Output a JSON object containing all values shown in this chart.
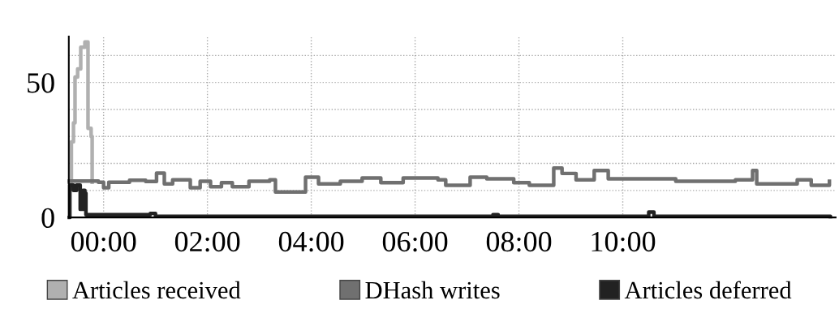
{
  "chart_data": {
    "type": "step",
    "xlim": [
      -0.67,
      14.1
    ],
    "ylim": [
      0,
      67
    ],
    "xticks": [
      {
        "value": 0,
        "label": "00:00"
      },
      {
        "value": 2,
        "label": "02:00"
      },
      {
        "value": 4,
        "label": "04:00"
      },
      {
        "value": 6,
        "label": "06:00"
      },
      {
        "value": 8,
        "label": "08:00"
      },
      {
        "value": 10,
        "label": "10:00"
      }
    ],
    "yticks": [
      0,
      {
        "value": 10,
        "label": null
      },
      {
        "value": 20,
        "label": null
      },
      {
        "value": 30,
        "label": null
      },
      {
        "value": 40,
        "label": null
      },
      50,
      {
        "value": 60,
        "label": null
      }
    ],
    "grid": true,
    "legend": "bottom",
    "marker": "none",
    "line_style": "solid",
    "series": [
      {
        "name": "Articles received",
        "color": "#b0b0b0",
        "x": [
          -0.66,
          -0.62,
          -0.58,
          -0.55,
          -0.5,
          -0.44,
          -0.36,
          -0.3,
          -0.24,
          -0.22
        ],
        "values": [
          13,
          28,
          35,
          52,
          55,
          63,
          65,
          33,
          30,
          13
        ]
      },
      {
        "name": "DHash writes",
        "color": "#707070",
        "x": [
          -0.66,
          -0.1,
          0.0,
          0.1,
          0.5,
          0.81,
          1.02,
          1.17,
          1.33,
          1.67,
          1.86,
          2.06,
          2.27,
          2.48,
          2.8,
          3.2,
          3.31,
          3.67,
          3.89,
          4.14,
          4.56,
          4.98,
          5.34,
          5.77,
          6.44,
          6.59,
          7.06,
          7.38,
          7.9,
          8.2,
          8.67,
          8.83,
          9.1,
          9.45,
          9.72,
          11.02,
          12.17,
          12.5,
          12.58,
          13.36,
          13.63,
          13.98
        ],
        "values": [
          13.5,
          13,
          11,
          13,
          13.8,
          13.3,
          16.4,
          12.4,
          13.9,
          11,
          13.4,
          11.4,
          12.9,
          11.4,
          13.4,
          13.9,
          9.4,
          9.4,
          14.9,
          12.4,
          13.4,
          14.6,
          12.9,
          14.6,
          13.9,
          11.9,
          14.9,
          14.3,
          12.9,
          11.9,
          18.3,
          16.3,
          13.9,
          17.4,
          14.3,
          13.4,
          13.9,
          17.4,
          12.4,
          13.9,
          11.9,
          13.4
        ]
      },
      {
        "name": "Articles deferred",
        "color": "#222222",
        "x": [
          -0.66,
          -0.65,
          -0.58,
          -0.52,
          -0.45,
          -0.4,
          -0.36,
          -0.34,
          0.9,
          1.0,
          4.0,
          7.5,
          7.6,
          10.5,
          10.6,
          14.0
        ],
        "values": [
          0,
          12,
          10,
          12,
          3,
          10,
          9,
          1,
          1.5,
          0.4,
          0.4,
          1,
          0.4,
          2,
          0.4,
          0.3
        ]
      }
    ]
  }
}
